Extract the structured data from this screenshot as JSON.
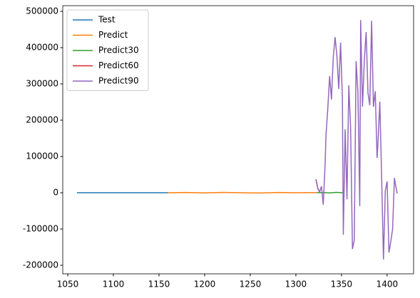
{
  "chart_data": {
    "type": "line",
    "xlim": [
      1044.5,
      1429
    ],
    "ylim": [
      -223500,
      515700
    ],
    "xticks": [
      1050,
      1100,
      1150,
      1200,
      1250,
      1300,
      1350,
      1400
    ],
    "yticks": [
      -200000,
      -100000,
      0,
      100000,
      200000,
      300000,
      400000,
      500000
    ],
    "legend": "upper left",
    "series": [
      {
        "name": "Test",
        "color": "#1f77b4",
        "x": [
          1060,
          1080,
          1100,
          1120,
          1140,
          1160
        ],
        "values": [
          0,
          0,
          0,
          0,
          0,
          0
        ]
      },
      {
        "name": "Predict",
        "color": "#ff7f0e",
        "x": [
          1160,
          1180,
          1200,
          1220,
          1240,
          1260,
          1280,
          1300,
          1323
        ],
        "values": [
          0,
          800,
          -500,
          1000,
          0,
          -600,
          700,
          0,
          500
        ]
      },
      {
        "name": "Predict30",
        "color": "#2ca02c",
        "x": [
          1323,
          1330,
          1337,
          1344,
          1352
        ],
        "values": [
          0,
          500,
          -500,
          1000,
          0
        ]
      },
      {
        "name": "Predict60",
        "color": "#d62728",
        "x": [
          1322,
          1324,
          1326
        ],
        "values": [
          37000,
          12000,
          2000
        ]
      },
      {
        "name": "Predict90",
        "color": "#9467bd",
        "x": [
          1322,
          1324,
          1326,
          1328,
          1330,
          1332,
          1333,
          1335,
          1337,
          1339,
          1341,
          1343,
          1345,
          1347,
          1349,
          1351,
          1352,
          1354,
          1356,
          1358,
          1360,
          1362,
          1364,
          1366,
          1368,
          1370,
          1371,
          1373,
          1375,
          1377,
          1379,
          1381,
          1383,
          1385,
          1387,
          1389,
          1390,
          1392,
          1394,
          1396,
          1398,
          1400,
          1402,
          1404,
          1406,
          1408,
          1409,
          1411
        ],
        "values": [
          37000,
          12000,
          2000,
          18000,
          -33000,
          76000,
          159000,
          233000,
          322000,
          257000,
          375000,
          429000,
          375000,
          286000,
          414000,
          257000,
          -116000,
          175000,
          -18000,
          296000,
          178000,
          -155000,
          -131000,
          363000,
          276000,
          -37000,
          476000,
          237000,
          365000,
          443000,
          276000,
          241000,
          474000,
          237000,
          280000,
          96000,
          139000,
          251000,
          41000,
          -184000,
          6000,
          31000,
          -165000,
          -135000,
          -100000,
          41000,
          25000,
          -2000
        ]
      }
    ]
  }
}
